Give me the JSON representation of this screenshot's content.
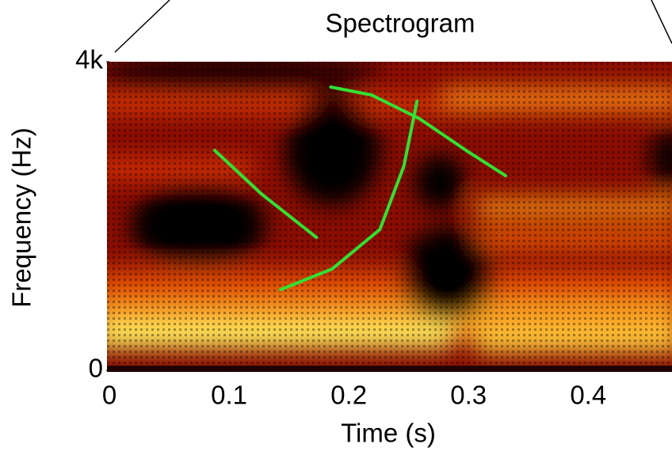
{
  "chart_data": {
    "type": "line",
    "title": "Spectrogram",
    "x_label": "Time (s)",
    "y_label": "Frequency (Hz)",
    "xlim": [
      0,
      0.47
    ],
    "ylim": [
      0,
      4000
    ],
    "xticks": [
      0,
      0.1,
      0.2,
      0.3,
      0.4
    ],
    "yticks": [
      0,
      {
        "value": 4000,
        "label": "4k"
      }
    ],
    "series": [
      {
        "color": "#33e033",
        "x": [
          0.088,
          0.127,
          0.173
        ],
        "values": [
          2851,
          2287,
          1723
        ]
      },
      {
        "color": "#33e033",
        "x": [
          0.143,
          0.186,
          0.226,
          0.246,
          0.257
        ],
        "values": [
          1046,
          1313,
          1826,
          2646,
          3487
        ]
      },
      {
        "color": "#33e033",
        "x": [
          0.185,
          0.219,
          0.259,
          0.298,
          0.331
        ],
        "values": [
          3672,
          3569,
          3262,
          2851,
          2523
        ]
      }
    ]
  }
}
